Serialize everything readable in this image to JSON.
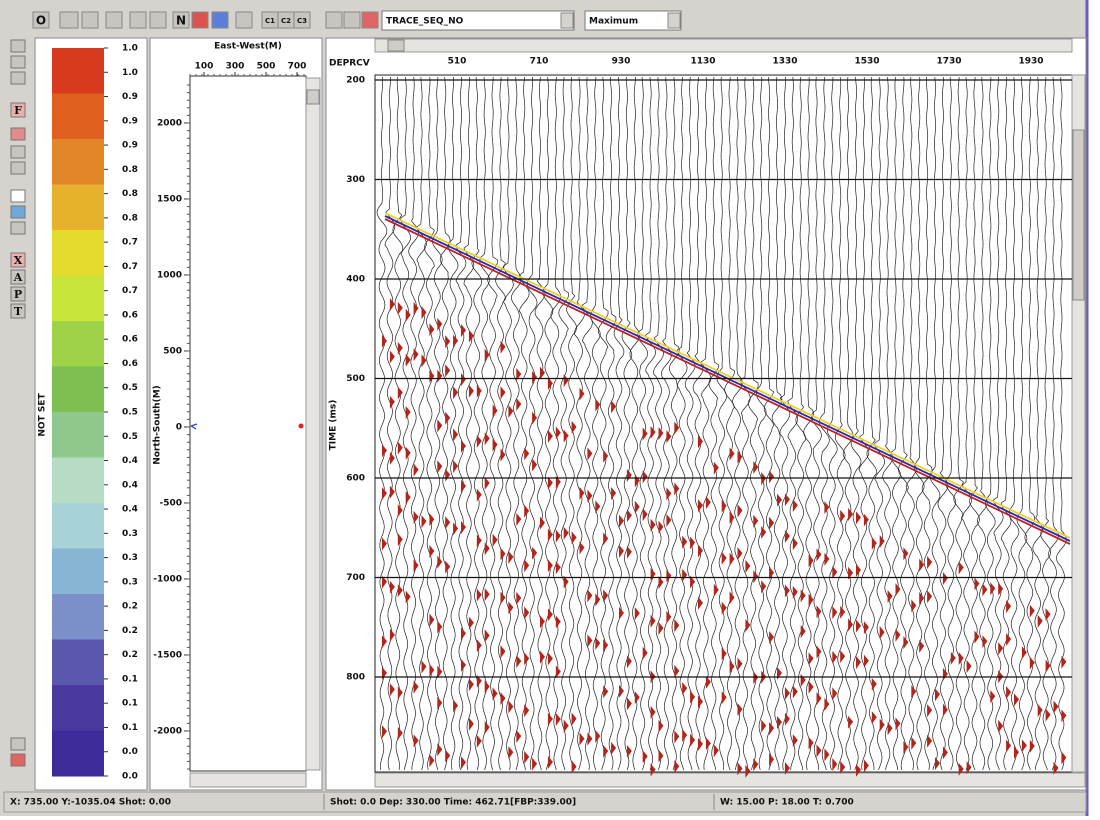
{
  "toolbar": {
    "buttons": [
      "O",
      "N",
      "C1",
      "C2",
      "C3"
    ],
    "trace_dropdown": "TRACE_SEQ_NO",
    "scale_dropdown": "Maximum"
  },
  "side_toolbar": {
    "buttons": [
      "F",
      "X",
      "A",
      "P",
      "T"
    ]
  },
  "colorbar": {
    "label": "NOT SET",
    "ticks": [
      "1.0",
      "1.0",
      "0.9",
      "0.9",
      "0.9",
      "0.8",
      "0.8",
      "0.8",
      "0.7",
      "0.7",
      "0.7",
      "0.6",
      "0.6",
      "0.6",
      "0.5",
      "0.5",
      "0.5",
      "0.4",
      "0.4",
      "0.4",
      "0.3",
      "0.3",
      "0.3",
      "0.2",
      "0.2",
      "0.2",
      "0.1",
      "0.1",
      "0.1",
      "0.0",
      "0.0"
    ]
  },
  "map": {
    "x_title": "East-West(M)",
    "x_ticks": [
      "100",
      "300",
      "500",
      "700"
    ],
    "y_title": "North-South(M)",
    "y_ticks": [
      "2000",
      "1500",
      "1000",
      "500",
      "0",
      "-500",
      "-1000",
      "-1500",
      "-2000"
    ]
  },
  "gather": {
    "x_header": "DEPRCV",
    "x_ticks": [
      "510",
      "710",
      "930",
      "1130",
      "1330",
      "1530",
      "1730",
      "1930"
    ],
    "y_title": "TIME (ms)",
    "y_ticks": [
      "200",
      "300",
      "400",
      "500",
      "600",
      "700",
      "800"
    ]
  },
  "status_bar": [
    "X: 735.00 Y:-1035.04 Shot: 0.00",
    "Shot: 0.0 Dep:  330.00 Time: 462.71[FBP:339.00]",
    "W: 15.00 P: 18.00 T: 0.700"
  ]
}
